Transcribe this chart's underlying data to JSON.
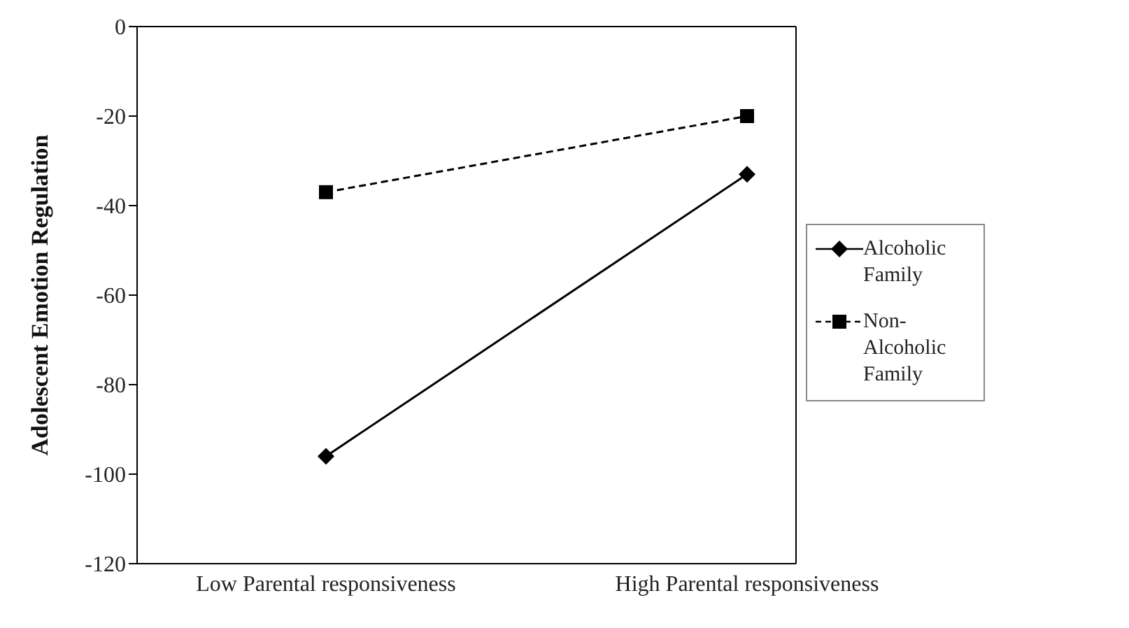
{
  "chart_data": {
    "type": "line",
    "ylabel": "Adolescent Emotion Regulation",
    "categories": [
      "Low Parental responsiveness",
      "High Parental responsiveness"
    ],
    "series": [
      {
        "name": "Alcoholic Family",
        "color": "#000000",
        "values": [
          -96,
          -33
        ],
        "marker": "diamond",
        "line_style": "solid"
      },
      {
        "name": "Non-Alcoholic Family",
        "color": "#000000",
        "values": [
          -37,
          -20
        ],
        "marker": "square",
        "line_style": "dashed"
      }
    ],
    "ylim": [
      -120,
      0
    ],
    "yticks": [
      -120,
      -100,
      -80,
      -60,
      -40,
      -20,
      0
    ],
    "legend": "right"
  }
}
